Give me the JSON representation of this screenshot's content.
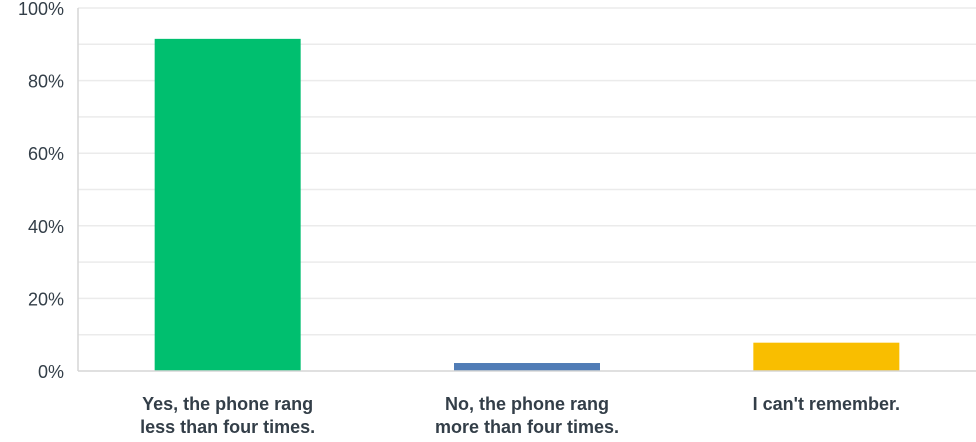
{
  "chart_data": {
    "type": "bar",
    "categories": [
      "Yes, the phone rang\nless than four times.",
      "No, the phone rang\nmore than four times.",
      "I can't remember."
    ],
    "values": [
      91.5,
      2.2,
      7.8
    ],
    "colors": [
      "#00bf6f",
      "#507cb6",
      "#f9be00"
    ],
    "ylim": [
      0,
      100
    ],
    "yticks": [
      "0%",
      "20%",
      "40%",
      "60%",
      "80%",
      "100%"
    ],
    "ytick_values": [
      0,
      20,
      40,
      60,
      80,
      100
    ],
    "grid": true,
    "legend": false
  }
}
